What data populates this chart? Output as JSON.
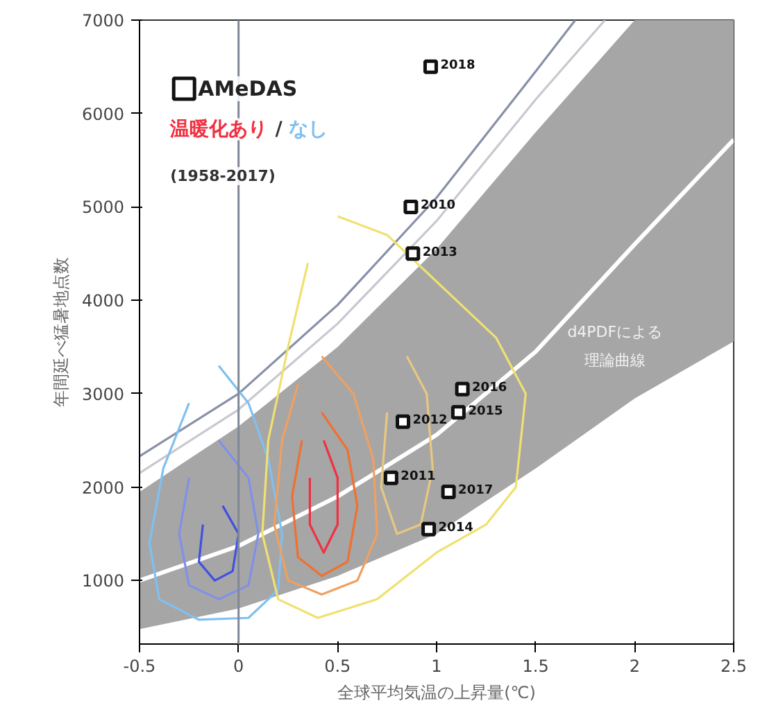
{
  "chart_data": {
    "type": "scatter",
    "xlabel": "全球平均気温の上昇量(℃)",
    "ylabel": "年間延べ猛暑地点数",
    "xlim": [
      -0.5,
      2.5
    ],
    "xticks": [
      -0.5,
      0,
      0.5,
      1,
      1.5,
      2,
      2.5
    ],
    "ylim": [
      320,
      7000
    ],
    "yticks": [
      1000,
      2000,
      3000,
      4000,
      5000,
      6000,
      7000
    ],
    "grid": false,
    "legend": "top left",
    "ref_lines": [
      {
        "axis": "x",
        "value": 0,
        "color": "#808898"
      }
    ],
    "series": [
      {
        "type": "line",
        "color": "#ffffff",
        "x": [
          -0.5,
          0,
          0.5,
          1,
          1.5,
          2,
          2.5
        ],
        "values": [
          1000,
          1370,
          1900,
          2560,
          3450,
          4600,
          5720
        ],
        "lower": [
          480,
          700,
          1050,
          1500,
          2200,
          2950,
          3560
        ],
        "upper": [
          1950,
          2650,
          3500,
          4550,
          5800,
          7000,
          7000
        ]
      },
      {
        "type": "line",
        "color": "#c8c8d0",
        "x": [
          -0.5,
          0,
          0.5,
          1,
          1.5,
          1.85
        ],
        "values": [
          2150,
          2830,
          3750,
          4850,
          6150,
          7000
        ]
      },
      {
        "type": "line",
        "color": "#8890a8",
        "x": [
          -0.5,
          0,
          0.5,
          1,
          1.5,
          1.7
        ],
        "values": [
          2330,
          3000,
          3950,
          5100,
          6450,
          7000
        ]
      },
      {
        "type": "line",
        "color": "#80c0f0",
        "name": "なし",
        "x": [
          -0.1,
          0.05,
          0.15,
          0.22,
          0.2,
          0.05,
          -0.2,
          -0.4,
          -0.45,
          -0.38,
          -0.25
        ],
        "values": [
          3300,
          2900,
          2300,
          1500,
          900,
          600,
          580,
          800,
          1400,
          2200,
          2900
        ]
      },
      {
        "type": "line",
        "color": "#8090e8",
        "x": [
          -0.1,
          0.05,
          0.1,
          0.05,
          -0.1,
          -0.25,
          -0.3,
          -0.25
        ],
        "values": [
          2500,
          2100,
          1500,
          950,
          800,
          950,
          1500,
          2100
        ]
      },
      {
        "type": "line",
        "color": "#4050e0",
        "x": [
          -0.08,
          0.0,
          -0.03,
          -0.12,
          -0.2,
          -0.18
        ],
        "values": [
          1800,
          1500,
          1100,
          1000,
          1200,
          1600
        ]
      },
      {
        "type": "line",
        "color": "#f0e070",
        "x": [
          0.5,
          0.75,
          0.95,
          1.3,
          1.45,
          1.4,
          1.25,
          1.0,
          0.7,
          0.4,
          0.2,
          0.12,
          0.15,
          0.25,
          0.35
        ],
        "values": [
          4900,
          4700,
          4300,
          3600,
          3000,
          2000,
          1600,
          1300,
          800,
          600,
          800,
          1500,
          2500,
          3500,
          4400
        ]
      },
      {
        "type": "line",
        "color": "#e8c880",
        "x": [
          0.85,
          0.95,
          0.98,
          0.92,
          0.8,
          0.72,
          0.75
        ],
        "values": [
          3400,
          3000,
          2200,
          1600,
          1500,
          2000,
          2800
        ]
      },
      {
        "type": "line",
        "color": "#f0a060",
        "x": [
          0.42,
          0.58,
          0.68,
          0.7,
          0.6,
          0.42,
          0.25,
          0.18,
          0.22,
          0.3
        ],
        "values": [
          3400,
          3000,
          2300,
          1500,
          1000,
          850,
          1000,
          1600,
          2500,
          3100
        ]
      },
      {
        "type": "line",
        "color": "#f07030",
        "x": [
          0.42,
          0.55,
          0.6,
          0.55,
          0.42,
          0.3,
          0.27,
          0.32
        ],
        "values": [
          2800,
          2400,
          1800,
          1200,
          1050,
          1250,
          1900,
          2500
        ]
      },
      {
        "type": "line",
        "color": "#f03040",
        "name": "温暖化あり",
        "x": [
          0.43,
          0.5,
          0.5,
          0.43,
          0.36,
          0.36
        ],
        "values": [
          2500,
          2100,
          1600,
          1300,
          1600,
          2100
        ]
      },
      {
        "name": "AMeDAS",
        "color": "#111111",
        "marker": "square",
        "x": [
          0.97,
          0.87,
          0.88,
          1.13,
          1.11,
          0.83,
          0.77,
          1.06,
          0.96
        ],
        "values": [
          6500,
          5000,
          4500,
          3050,
          2800,
          2700,
          2100,
          1950,
          1550
        ]
      }
    ],
    "annotations": [
      "/",
      "(1958-2017)",
      "d4PDFによる",
      "理論曲線",
      {
        "text": "2018",
        "x": 0.97,
        "y": 6500
      },
      {
        "text": "2010",
        "x": 0.87,
        "y": 5000
      },
      {
        "text": "2013",
        "x": 0.88,
        "y": 4500
      },
      {
        "text": "2016",
        "x": 1.13,
        "y": 3050
      },
      {
        "text": "2015",
        "x": 1.11,
        "y": 2800
      },
      {
        "text": "2012",
        "x": 0.83,
        "y": 2700
      },
      {
        "text": "2011",
        "x": 0.77,
        "y": 2100
      },
      {
        "text": "2017",
        "x": 1.06,
        "y": 1950
      },
      {
        "text": "2014",
        "x": 0.96,
        "y": 1550
      }
    ]
  }
}
